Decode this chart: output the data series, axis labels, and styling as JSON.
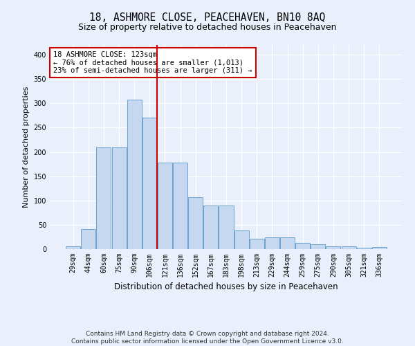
{
  "title": "18, ASHMORE CLOSE, PEACEHAVEN, BN10 8AQ",
  "subtitle": "Size of property relative to detached houses in Peacehaven",
  "xlabel": "Distribution of detached houses by size in Peacehaven",
  "ylabel": "Number of detached properties",
  "categories": [
    "29sqm",
    "44sqm",
    "60sqm",
    "75sqm",
    "90sqm",
    "106sqm",
    "121sqm",
    "136sqm",
    "152sqm",
    "167sqm",
    "183sqm",
    "198sqm",
    "213sqm",
    "229sqm",
    "244sqm",
    "259sqm",
    "275sqm",
    "290sqm",
    "305sqm",
    "321sqm",
    "336sqm"
  ],
  "values": [
    5,
    42,
    210,
    210,
    307,
    270,
    178,
    178,
    107,
    90,
    90,
    39,
    22,
    24,
    24,
    13,
    10,
    5,
    6,
    3,
    4
  ],
  "bar_color": "#c5d8f0",
  "bar_edgecolor": "#5a96c8",
  "vline_x": 5.5,
  "vline_color": "#cc0000",
  "annotation_text": "18 ASHMORE CLOSE: 123sqm\n← 76% of detached houses are smaller (1,013)\n23% of semi-detached houses are larger (311) →",
  "annotation_box_color": "#ffffff",
  "annotation_box_edgecolor": "#cc0000",
  "footer_line1": "Contains HM Land Registry data © Crown copyright and database right 2024.",
  "footer_line2": "Contains public sector information licensed under the Open Government Licence v3.0.",
  "background_color": "#eaf0fb",
  "grid_color": "#ffffff",
  "ylim": [
    0,
    420
  ],
  "title_fontsize": 10.5,
  "subtitle_fontsize": 9,
  "xlabel_fontsize": 8.5,
  "ylabel_fontsize": 8,
  "tick_fontsize": 7,
  "annotation_fontsize": 7.5,
  "footer_fontsize": 6.5
}
